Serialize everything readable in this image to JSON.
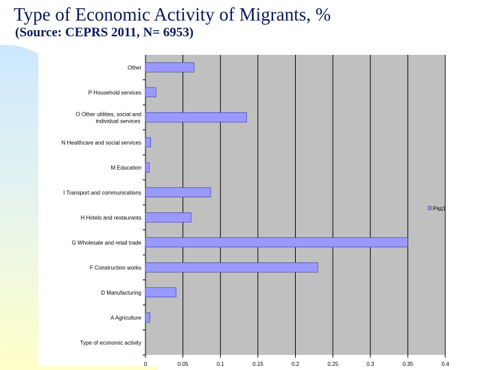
{
  "slide": {
    "title": "Type of Economic Activity of Migrants, %",
    "subtitle": "(Source: CEPRS 2011, N= 6953)"
  },
  "colors": {
    "title": "#0a1a5c",
    "plot_area": "#c0c0c0",
    "bar_fill": "#9999ff",
    "bar_stroke": "#333399",
    "gridline": "#000000",
    "decor_blue": "#cce8ff",
    "decor_yellow": "#ffffc8"
  },
  "chart_data": {
    "type": "bar",
    "orientation": "horizontal",
    "categories": [
      "Type of economic activity",
      "A Agriculture",
      "D Manufacturing",
      "F Construction works",
      "G Wholesale and retail trade",
      "H Hotels and restaurants",
      "I Transport and communications",
      "M Education",
      "N Healthcare and social services",
      "O Other utilities, social and individual services",
      "P Household services",
      "Other"
    ],
    "series": [
      {
        "name": "Ряд1",
        "values": [
          0,
          0.006,
          0.041,
          0.23,
          0.35,
          0.061,
          0.087,
          0.005,
          0.007,
          0.135,
          0.014,
          0.065
        ]
      }
    ],
    "x_ticks": [
      "0",
      "0,05",
      "0,1",
      "0,15",
      "0,2",
      "0,25",
      "0,3",
      "0,35",
      "0,4"
    ],
    "xlim": [
      0,
      0.4
    ],
    "grid": true,
    "legend": "right"
  }
}
